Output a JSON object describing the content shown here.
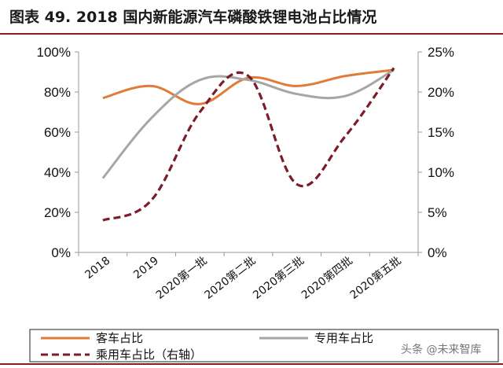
{
  "title": "图表 49. 2018 国内新能源汽车磷酸铁锂电池占比情况",
  "watermark": "头条 @未来智库",
  "chart_data": {
    "type": "line",
    "title": "图表 49. 2018 国内新能源汽车磷酸铁锂电池占比情况",
    "categories": [
      "2018",
      "2019",
      "2020第一批",
      "2020第二批",
      "2020第三批",
      "2020第四批",
      "2020第五批"
    ],
    "y_left": {
      "lim": [
        0,
        100
      ],
      "ticks": [
        "0%",
        "20%",
        "40%",
        "60%",
        "80%",
        "100%"
      ]
    },
    "y_right": {
      "lim": [
        0,
        25
      ],
      "ticks": [
        "0%",
        "5%",
        "10%",
        "15%",
        "20%",
        "25%"
      ]
    },
    "grid": false,
    "legend_position": "bottom",
    "series": [
      {
        "name": "客车占比",
        "axis": "left",
        "color": "#e07b39",
        "style": "solid",
        "values": [
          77,
          83,
          74,
          87,
          83,
          88,
          91
        ]
      },
      {
        "name": "专用车占比",
        "axis": "left",
        "color": "#a6a6a6",
        "style": "solid",
        "values": [
          37,
          67,
          86,
          86,
          79,
          78,
          91
        ]
      },
      {
        "name": "乘用车占比（右轴）",
        "axis": "right",
        "color": "#7b1c2a",
        "style": "dashed",
        "values": [
          4,
          6.5,
          17.5,
          22,
          8.5,
          14.5,
          23
        ]
      }
    ]
  }
}
